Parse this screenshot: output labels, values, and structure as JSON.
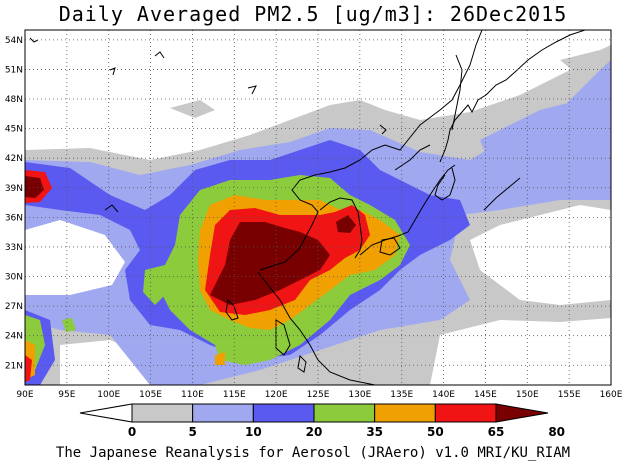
{
  "title": "Daily Averaged PM2.5 [ug/m3]: 26Dec2015",
  "footer": "The Japanese Reanalysis for Aerosol (JRAero) v1.0 MRI/KU_RIAM",
  "map": {
    "lon_range": [
      90,
      160
    ],
    "lat_range": [
      19,
      55
    ],
    "lat_labels": [
      "54N",
      "51N",
      "48N",
      "45N",
      "42N",
      "39N",
      "36N",
      "33N",
      "30N",
      "27N",
      "24N",
      "21N"
    ],
    "lat_values": [
      54,
      51,
      48,
      45,
      42,
      39,
      36,
      33,
      30,
      27,
      24,
      21
    ],
    "lon_labels": [
      "90E",
      "95E",
      "100E",
      "105E",
      "110E",
      "115E",
      "120E",
      "125E",
      "130E",
      "135E",
      "140E",
      "145E",
      "150E",
      "155E",
      "160E"
    ],
    "lon_values": [
      90,
      95,
      100,
      105,
      110,
      115,
      120,
      125,
      130,
      135,
      140,
      145,
      150,
      155,
      160
    ]
  },
  "colorbar": {
    "levels": [
      "0",
      "5",
      "10",
      "20",
      "35",
      "50",
      "65",
      "80"
    ],
    "colors": [
      "#ffffff",
      "#c8c8c8",
      "#a0a8f0",
      "#5a5af0",
      "#8ccc3c",
      "#f0a000",
      "#f01414",
      "#780000"
    ]
  }
}
